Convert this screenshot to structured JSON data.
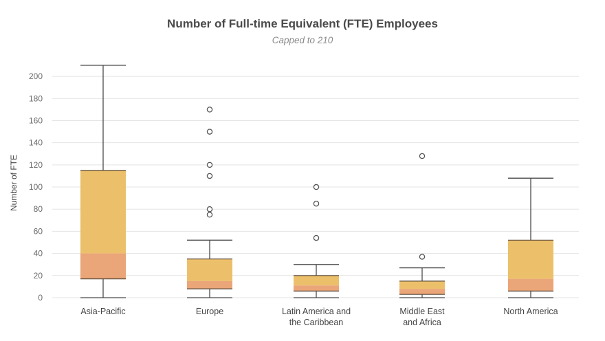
{
  "chart_data": {
    "type": "box",
    "title": "Number of Full-time Equivalent (FTE) Employees",
    "subtitle": "Capped to 210",
    "ylabel": "Number of FTE",
    "xlabel": "",
    "ylim": [
      0,
      210
    ],
    "yticks": [
      0,
      20,
      40,
      60,
      80,
      100,
      120,
      140,
      160,
      180,
      200
    ],
    "grid": true,
    "colors": {
      "upper_box": "#ecc06a",
      "lower_box": "#eaa578",
      "whisker": "#4a4a4a"
    },
    "categories": [
      [
        "Asia-Pacific"
      ],
      [
        "Europe"
      ],
      [
        "Latin America and",
        "the Caribbean"
      ],
      [
        "Middle East",
        "and Africa"
      ],
      [
        "North America"
      ]
    ],
    "boxes": [
      {
        "min": 0,
        "q1": 17,
        "median": 40,
        "q3": 115,
        "max": 210,
        "outliers": []
      },
      {
        "min": 0,
        "q1": 8,
        "median": 15,
        "q3": 35,
        "max": 52,
        "outliers": [
          75,
          80,
          110,
          120,
          150,
          170
        ]
      },
      {
        "min": 0,
        "q1": 6,
        "median": 11,
        "q3": 20,
        "max": 30,
        "outliers": [
          54,
          85,
          100
        ]
      },
      {
        "min": 0,
        "q1": 3,
        "median": 8,
        "q3": 15,
        "max": 27,
        "outliers": [
          37,
          128
        ]
      },
      {
        "min": 0,
        "q1": 6,
        "median": 17,
        "q3": 52,
        "max": 108,
        "outliers": []
      }
    ]
  }
}
